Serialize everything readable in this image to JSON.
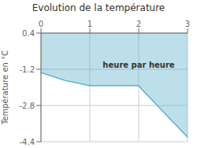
{
  "chart_data": {
    "type": "area",
    "title": "Evolution de la température",
    "y_label": "Température en °C",
    "x": [
      0,
      0.5,
      1.0,
      2.0,
      2.05,
      3.0
    ],
    "values": [
      -1.35,
      -1.7,
      -1.92,
      -1.92,
      -2.05,
      -4.2
    ],
    "color": "#5ab0c8",
    "xlim": [
      0,
      3
    ],
    "ylim": [
      -4.4,
      0.4
    ],
    "xticks": [
      0,
      1,
      2,
      3
    ],
    "yticks": [
      -4.4,
      -2.8,
      -1.2,
      0.4
    ],
    "grid": true,
    "annotations": [
      {
        "text": "heure par heure",
        "x": 2.0,
        "y": -1.0
      }
    ]
  }
}
